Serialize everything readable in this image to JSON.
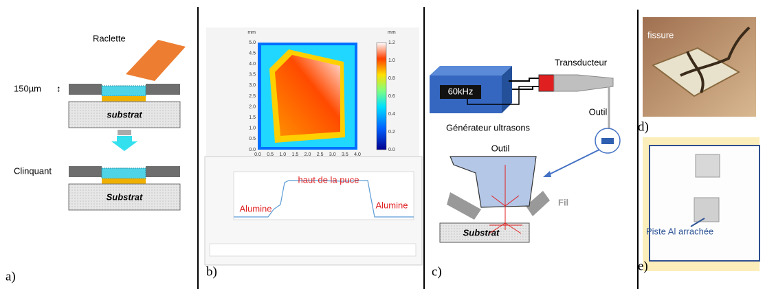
{
  "panel_a": {
    "label": "a)",
    "squeegee": "Raclette",
    "thickness": "150µm",
    "substrate_top": "substrat",
    "stencil": "Clinquant",
    "substrate_bottom": "Substrat"
  },
  "panel_b": {
    "label": "b)",
    "heatmap": {
      "y_unit": "mm",
      "y_ticks": [
        "0.0",
        "0.5",
        "1.0",
        "1.5",
        "2.0",
        "2.5",
        "3.0",
        "3.5",
        "4.0",
        "4.5",
        "5.0"
      ],
      "x_ticks": [
        "0.0",
        "0.5",
        "1.0",
        "1.5",
        "2.0",
        "2.5",
        "3.0",
        "3.5",
        "4.0"
      ],
      "colorbar_unit": "mm",
      "colorbar_ticks": [
        "0.0",
        "0.2",
        "0.4",
        "0.6",
        "0.8",
        "1.0",
        "1.2"
      ]
    },
    "profile": {
      "top": "haut de la puce",
      "left": "Alumine",
      "right": "Alumine"
    }
  },
  "panel_c": {
    "label": "c)",
    "generator_display": "60kHz",
    "transducer": "Transducteur",
    "generator": "Générateur ultrasons",
    "tool_small": "Outil",
    "tool_large": "Outil",
    "wire": "Fil",
    "substrate": "Substrat"
  },
  "panel_d": {
    "label": "d)",
    "annotation": "fissure"
  },
  "panel_e": {
    "label": "e)",
    "annotation": "Piste Al arrachée"
  }
}
